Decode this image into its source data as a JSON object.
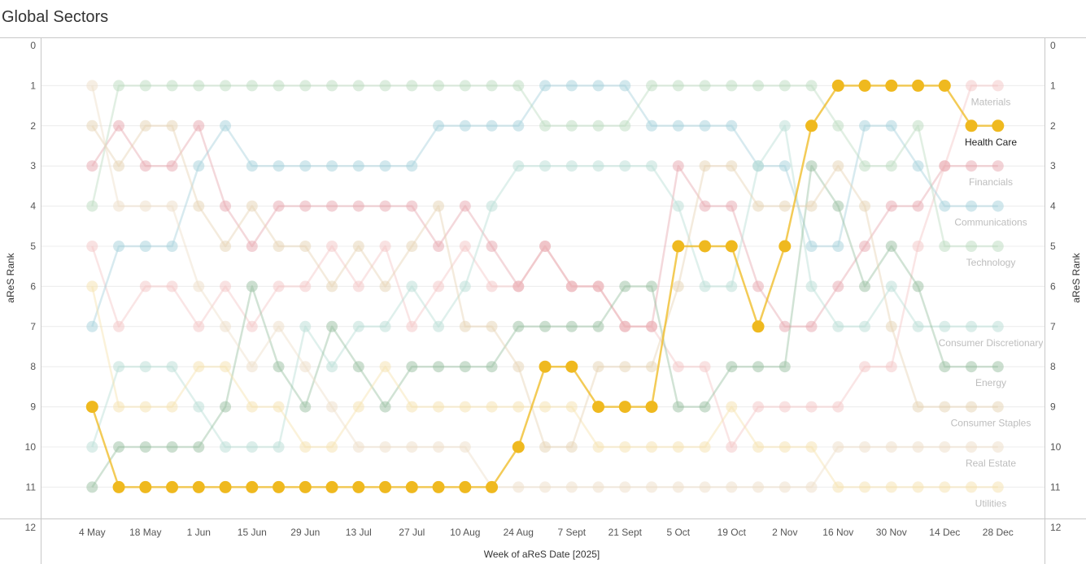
{
  "title": "Global Sectors",
  "chart_data": {
    "type": "line",
    "xlabel": "Week of aReS Date [2025]",
    "ylabel": "aReS Rank",
    "ylabel_right": "aReS Rank",
    "ylim": [
      12,
      0
    ],
    "y_ticks": [
      0,
      1,
      2,
      3,
      4,
      5,
      6,
      7,
      8,
      9,
      10,
      11,
      12
    ],
    "x": [
      "4 May",
      "11 May",
      "18 May",
      "25 May",
      "1 Jun",
      "8 Jun",
      "15 Jun",
      "22 Jun",
      "29 Jun",
      "6 Jul",
      "13 Jul",
      "20 Jul",
      "27 Jul",
      "3 Aug",
      "10 Aug",
      "17 Aug",
      "24 Aug",
      "31 Aug",
      "7 Sept",
      "14 Sept",
      "21 Sept",
      "28 Sept",
      "5 Oct",
      "12 Oct",
      "19 Oct",
      "26 Oct",
      "2 Nov",
      "9 Nov",
      "16 Nov",
      "23 Nov",
      "30 Nov",
      "7 Dec",
      "14 Dec",
      "21 Dec",
      "28 Dec"
    ],
    "x_tick_labels": [
      "4 May",
      "18 May",
      "1 Jun",
      "15 Jun",
      "29 Jun",
      "13 Jul",
      "27 Jul",
      "10 Aug",
      "24 Aug",
      "7 Sept",
      "21 Sept",
      "5 Oct",
      "19 Oct",
      "2 Nov",
      "16 Nov",
      "30 Nov",
      "14 Dec",
      "28 Dec"
    ],
    "highlighted_series": "Health Care",
    "grid": "horizontal",
    "series": [
      {
        "name": "Materials",
        "color": "#f4c6c6",
        "values": [
          5,
          7,
          6,
          6,
          7,
          6,
          7,
          6,
          6,
          5,
          6,
          5,
          7,
          6,
          5,
          6,
          6,
          5,
          6,
          6,
          7,
          7,
          8,
          8,
          10,
          9,
          9,
          9,
          9,
          8,
          8,
          5,
          3,
          1,
          1
        ]
      },
      {
        "name": "Health Care",
        "color": "#efb91f",
        "values": [
          9,
          11,
          11,
          11,
          11,
          11,
          11,
          11,
          11,
          11,
          11,
          11,
          11,
          11,
          11,
          11,
          10,
          8,
          8,
          9,
          9,
          9,
          5,
          5,
          5,
          7,
          5,
          2,
          1,
          1,
          1,
          1,
          1,
          2,
          2
        ]
      },
      {
        "name": "Financials",
        "color": "#e7a8b0",
        "values": [
          3,
          2,
          3,
          3,
          2,
          4,
          5,
          4,
          4,
          4,
          4,
          4,
          4,
          5,
          4,
          5,
          6,
          5,
          6,
          6,
          7,
          7,
          3,
          4,
          4,
          6,
          7,
          7,
          6,
          5,
          4,
          4,
          3,
          3,
          3
        ]
      },
      {
        "name": "Communications",
        "color": "#a6d1dc",
        "values": [
          7,
          5,
          5,
          5,
          3,
          2,
          3,
          3,
          3,
          3,
          3,
          3,
          3,
          2,
          2,
          2,
          2,
          1,
          1,
          1,
          1,
          2,
          2,
          2,
          2,
          3,
          3,
          5,
          5,
          2,
          2,
          3,
          4,
          4,
          4
        ]
      },
      {
        "name": "Technology",
        "color": "#bcdcc0",
        "values": [
          4,
          1,
          1,
          1,
          1,
          1,
          1,
          1,
          1,
          1,
          1,
          1,
          1,
          1,
          1,
          1,
          1,
          2,
          2,
          2,
          2,
          1,
          1,
          1,
          1,
          1,
          1,
          1,
          2,
          3,
          3,
          2,
          5,
          5,
          5
        ]
      },
      {
        "name": "Consumer Discretionary",
        "color": "#b9ddd5",
        "values": [
          10,
          8,
          8,
          8,
          9,
          10,
          10,
          10,
          7,
          8,
          7,
          7,
          6,
          7,
          6,
          4,
          3,
          3,
          3,
          3,
          3,
          3,
          4,
          6,
          6,
          3,
          2,
          6,
          7,
          7,
          6,
          7,
          7,
          7,
          7
        ]
      },
      {
        "name": "Energy",
        "color": "#99c0a1",
        "values": [
          11,
          10,
          10,
          10,
          10,
          9,
          6,
          8,
          9,
          7,
          8,
          9,
          8,
          8,
          8,
          8,
          7,
          7,
          7,
          7,
          6,
          6,
          9,
          9,
          8,
          8,
          8,
          3,
          4,
          6,
          5,
          6,
          8,
          8,
          8
        ]
      },
      {
        "name": "Utilities",
        "color": "#f6e2ae",
        "values": [
          6,
          9,
          9,
          9,
          8,
          8,
          9,
          9,
          10,
          10,
          9,
          8,
          9,
          9,
          9,
          9,
          9,
          9,
          9,
          10,
          10,
          10,
          10,
          10,
          9,
          10,
          10,
          10,
          11,
          11,
          11,
          11,
          11,
          11,
          11
        ]
      },
      {
        "name": "Consumer Staples",
        "color": "#e6d3b3",
        "values": [
          2,
          3,
          2,
          2,
          4,
          5,
          4,
          5,
          5,
          6,
          5,
          6,
          5,
          4,
          7,
          7,
          8,
          10,
          10,
          8,
          8,
          8,
          6,
          3,
          3,
          4,
          4,
          4,
          3,
          4,
          7,
          9,
          9,
          9,
          9
        ]
      },
      {
        "name": "Real Estate",
        "color": "#eeddc7",
        "values": [
          1,
          4,
          4,
          4,
          6,
          7,
          8,
          7,
          8,
          9,
          10,
          10,
          10,
          10,
          10,
          11,
          11,
          11,
          11,
          11,
          11,
          11,
          11,
          11,
          11,
          11,
          11,
          11,
          10,
          10,
          10,
          10,
          10,
          10,
          10
        ]
      }
    ]
  }
}
